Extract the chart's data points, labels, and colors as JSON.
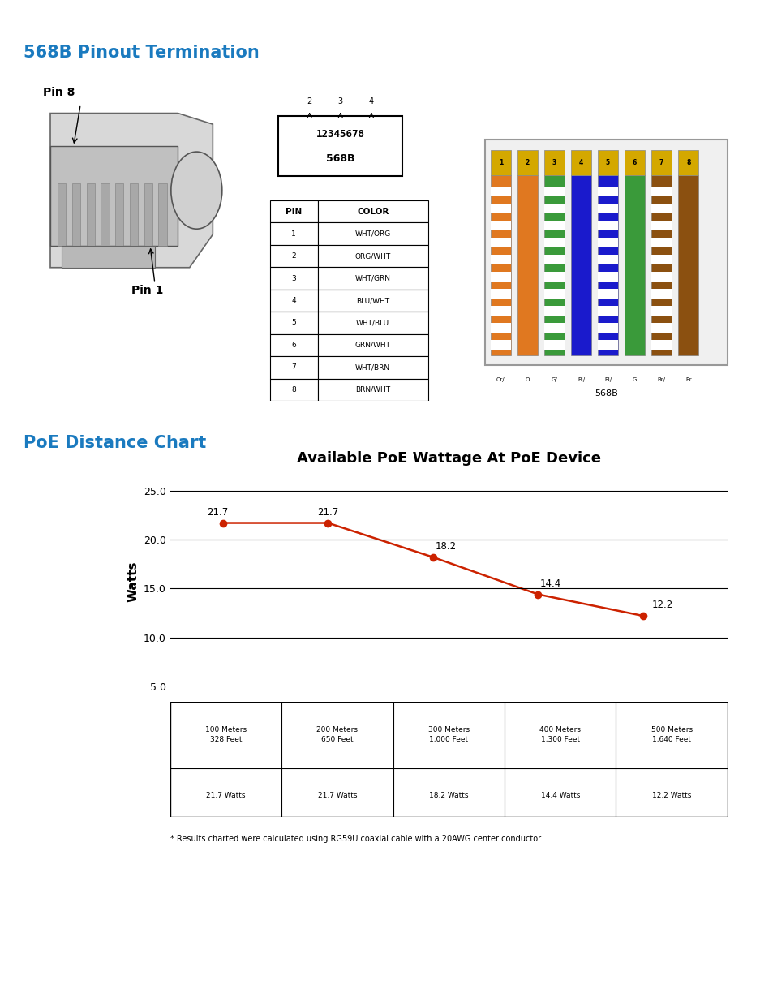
{
  "page_title_1": "568B Pinout Termination",
  "page_title_2": "PoE Distance Chart",
  "title_color": "#1a7abf",
  "title_fontsize": 15,
  "chart_title": "Available PoE Wattage At PoE Device",
  "chart_title_fontsize": 13,
  "ylabel": "Watts",
  "ylabel_fontsize": 11,
  "x_values": [
    1,
    2,
    3,
    4,
    5
  ],
  "y_values": [
    21.7,
    21.7,
    18.2,
    14.4,
    12.2
  ],
  "data_labels": [
    "21.7",
    "21.7",
    "18.2",
    "14.4",
    "12.2"
  ],
  "line_color": "#cc2200",
  "marker_color": "#cc2200",
  "marker_size": 6,
  "ylim_min": 5.0,
  "ylim_max": 26.5,
  "yticks": [
    5.0,
    10.0,
    15.0,
    20.0,
    25.0
  ],
  "grid_color": "#000000",
  "pin_table_headers": [
    "PIN",
    "COLOR"
  ],
  "pin_table_data": [
    [
      "1",
      "WHT/ORG"
    ],
    [
      "2",
      "ORG/WHT"
    ],
    [
      "3",
      "WHT/GRN"
    ],
    [
      "4",
      "BLU/WHT"
    ],
    [
      "5",
      "WHT/BLU"
    ],
    [
      "6",
      "GRN/WHT"
    ],
    [
      "7",
      "WHT/BRN"
    ],
    [
      "8",
      "BRN/WHT"
    ]
  ],
  "distance_table_row1": [
    "100 Meters\n328 Feet",
    "200 Meters\n650 Feet",
    "300 Meters\n1,000 Feet",
    "400 Meters\n1,300 Feet",
    "500 Meters\n1,640 Feet"
  ],
  "distance_table_row2": [
    "21.7 Watts",
    "21.7 Watts",
    "18.2 Watts",
    "14.4 Watts",
    "12.2 Watts"
  ],
  "footnote": "* Results charted were calculated using RG59U coaxial cable with a 20AWG center conductor.",
  "background_color": "#ffffff"
}
